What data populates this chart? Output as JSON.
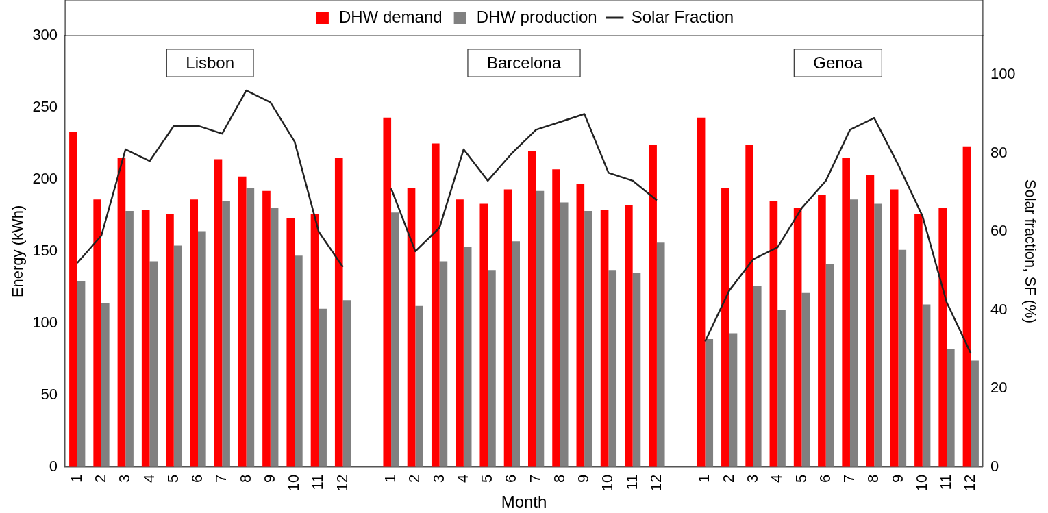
{
  "chart_data": {
    "type": "bar",
    "xlabel": "Month",
    "ylabel": "Energy (kWh)",
    "y2label": "Solar fraction, SF (%)",
    "categories": [
      "1",
      "2",
      "3",
      "4",
      "5",
      "6",
      "7",
      "8",
      "9",
      "10",
      "11",
      "12",
      null,
      "1",
      "2",
      "3",
      "4",
      "5",
      "6",
      "7",
      "8",
      "9",
      "10",
      "11",
      "12",
      null,
      "1",
      "2",
      "3",
      "4",
      "5",
      "6",
      "7",
      "8",
      "9",
      "10",
      "11",
      "12"
    ],
    "series": [
      {
        "name": "DHW demand",
        "color": "#ff0000",
        "values": [
          233,
          186,
          215,
          179,
          176,
          186,
          214,
          202,
          192,
          173,
          176,
          215,
          null,
          243,
          194,
          225,
          186,
          183,
          193,
          220,
          207,
          197,
          179,
          182,
          224,
          null,
          243,
          194,
          224,
          185,
          180,
          189,
          215,
          203,
          193,
          176,
          180,
          223
        ]
      },
      {
        "name": "DHW production",
        "color": "#808080",
        "values": [
          129,
          114,
          178,
          143,
          154,
          164,
          185,
          194,
          180,
          147,
          110,
          116,
          null,
          177,
          112,
          143,
          153,
          137,
          157,
          192,
          184,
          178,
          137,
          135,
          156,
          null,
          89,
          93,
          126,
          109,
          121,
          141,
          186,
          183,
          151,
          113,
          82,
          74
        ]
      },
      {
        "name": "Solar Fraction",
        "type": "line",
        "axis": "y2",
        "color": "#222222",
        "values": [
          52,
          59,
          81,
          78,
          87,
          87,
          85,
          96,
          93,
          83,
          60,
          51,
          null,
          71,
          55,
          61,
          81,
          73,
          80,
          86,
          88,
          90,
          75,
          73,
          68,
          null,
          32,
          45,
          53,
          56,
          66,
          73,
          86,
          89,
          77,
          64,
          42,
          29
        ]
      }
    ],
    "ylim": [
      0,
      300
    ],
    "yticks": [
      0,
      50,
      100,
      150,
      200,
      250,
      300
    ],
    "y2lim": [
      0,
      110
    ],
    "y2ticks": [
      0,
      20,
      40,
      60,
      80,
      100
    ],
    "annotations": [
      "Lisbon",
      "Barcelona",
      "Genoa"
    ],
    "legend": "top",
    "grid": false,
    "marker": "none",
    "line_style": "solid"
  }
}
